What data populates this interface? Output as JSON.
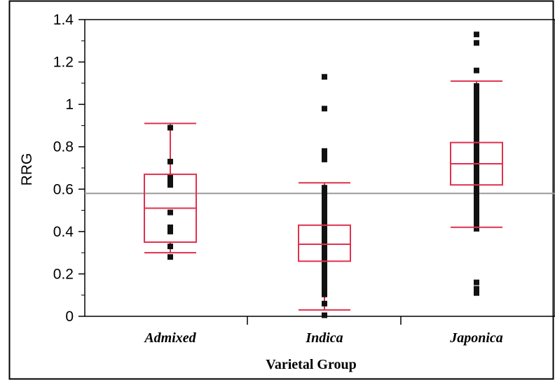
{
  "chart_data": {
    "type": "box",
    "xlabel": "Varietal Group",
    "ylabel": "RRG",
    "ylim": [
      0,
      1.4
    ],
    "yticks": [
      0,
      0.2,
      0.4,
      0.6,
      0.8,
      1,
      1.2,
      1.4
    ],
    "ytick_labels": [
      "0",
      "0.2",
      "0.4",
      "0.6",
      "0.8",
      "1",
      "1.2",
      "1.4"
    ],
    "reference_line": 0.58,
    "grid": false,
    "box_color": "#e0304e",
    "point_color": "#111111",
    "reference_line_color": "#9a9a9a",
    "categories": [
      "Admixed",
      "Indica",
      "Japonica"
    ],
    "groups": [
      {
        "name": "Admixed",
        "whisker_low": 0.3,
        "q1": 0.35,
        "median": 0.51,
        "q3": 0.67,
        "whisker_high": 0.91,
        "points": [
          0.28,
          0.33,
          0.4,
          0.42,
          0.49,
          0.62,
          0.64,
          0.66,
          0.73,
          0.89
        ]
      },
      {
        "name": "Indica",
        "whisker_low": 0.03,
        "q1": 0.26,
        "median": 0.34,
        "q3": 0.43,
        "whisker_high": 0.63,
        "points": [
          0.005,
          0.06,
          0.74,
          0.76,
          0.78,
          0.98,
          1.13
        ],
        "dense_ranges": [
          [
            0.09,
            0.62
          ]
        ]
      },
      {
        "name": "Japonica",
        "whisker_low": 0.42,
        "q1": 0.62,
        "median": 0.72,
        "q3": 0.82,
        "whisker_high": 1.11,
        "points": [
          0.11,
          0.13,
          0.16,
          1.16,
          1.29,
          1.33
        ],
        "dense_ranges": [
          [
            0.4,
            1.1
          ]
        ]
      }
    ]
  }
}
